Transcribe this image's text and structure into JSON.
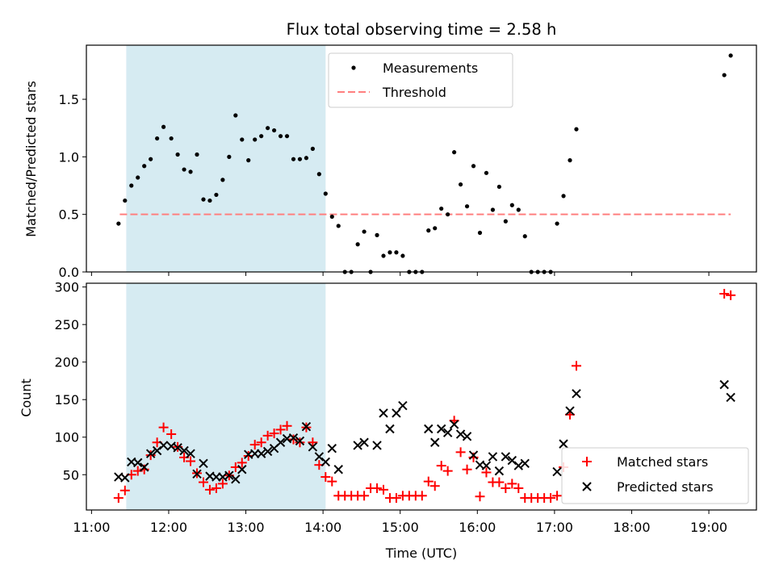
{
  "chart_data": [
    {
      "type": "scatter",
      "title": "Flux total observing time = 2.58 h",
      "xlabel": "",
      "ylabel": "Matched/Predicted stars",
      "ylim": [
        0,
        1.97
      ],
      "yticks": [
        "0.0",
        "0.5",
        "1.0",
        "1.5"
      ],
      "shaded_interval": [
        "11:27",
        "14:02"
      ],
      "threshold": 0.5,
      "threshold_range": [
        "11:22",
        "19:17"
      ],
      "legend": {
        "position": "top-center",
        "entries": [
          "Measurements",
          "Threshold"
        ]
      },
      "series": [
        {
          "name": "Measurements",
          "points": [
            [
              "11:21",
              0.42
            ],
            [
              "11:26",
              0.62
            ],
            [
              "11:31",
              0.75
            ],
            [
              "11:36",
              0.82
            ],
            [
              "11:41",
              0.92
            ],
            [
              "11:46",
              0.98
            ],
            [
              "11:51",
              1.16
            ],
            [
              "11:56",
              1.26
            ],
            [
              "12:02",
              1.16
            ],
            [
              "12:07",
              1.02
            ],
            [
              "12:12",
              0.89
            ],
            [
              "12:17",
              0.87
            ],
            [
              "12:22",
              1.02
            ],
            [
              "12:27",
              0.63
            ],
            [
              "12:32",
              0.62
            ],
            [
              "12:37",
              0.67
            ],
            [
              "12:42",
              0.8
            ],
            [
              "12:47",
              1.0
            ],
            [
              "12:52",
              1.36
            ],
            [
              "12:57",
              1.15
            ],
            [
              "13:02",
              0.97
            ],
            [
              "13:07",
              1.15
            ],
            [
              "13:12",
              1.18
            ],
            [
              "13:17",
              1.25
            ],
            [
              "13:22",
              1.23
            ],
            [
              "13:27",
              1.18
            ],
            [
              "13:32",
              1.18
            ],
            [
              "13:37",
              0.98
            ],
            [
              "13:42",
              0.98
            ],
            [
              "13:47",
              0.99
            ],
            [
              "13:52",
              1.07
            ],
            [
              "13:57",
              0.85
            ],
            [
              "14:02",
              0.68
            ],
            [
              "14:07",
              0.48
            ],
            [
              "14:12",
              0.4
            ],
            [
              "14:17",
              0.0
            ],
            [
              "14:22",
              0.0
            ],
            [
              "14:27",
              0.24
            ],
            [
              "14:32",
              0.35
            ],
            [
              "14:37",
              0.0
            ],
            [
              "14:42",
              0.32
            ],
            [
              "14:47",
              0.14
            ],
            [
              "14:52",
              0.17
            ],
            [
              "14:57",
              0.17
            ],
            [
              "15:02",
              0.14
            ],
            [
              "15:07",
              0.0
            ],
            [
              "15:12",
              0.0
            ],
            [
              "15:17",
              0.0
            ],
            [
              "15:22",
              0.36
            ],
            [
              "15:27",
              0.38
            ],
            [
              "15:32",
              0.55
            ],
            [
              "15:37",
              0.5
            ],
            [
              "15:42",
              1.04
            ],
            [
              "15:47",
              0.76
            ],
            [
              "15:52",
              0.57
            ],
            [
              "15:57",
              0.92
            ],
            [
              "16:02",
              0.34
            ],
            [
              "16:07",
              0.86
            ],
            [
              "16:12",
              0.54
            ],
            [
              "16:17",
              0.74
            ],
            [
              "16:22",
              0.44
            ],
            [
              "16:27",
              0.58
            ],
            [
              "16:32",
              0.54
            ],
            [
              "16:37",
              0.31
            ],
            [
              "16:42",
              0.0
            ],
            [
              "16:47",
              0.0
            ],
            [
              "16:52",
              0.0
            ],
            [
              "16:57",
              0.0
            ],
            [
              "17:02",
              0.42
            ],
            [
              "17:07",
              0.66
            ],
            [
              "17:12",
              0.97
            ],
            [
              "17:17",
              1.24
            ],
            [
              "19:12",
              1.71
            ],
            [
              "19:17",
              1.88
            ]
          ]
        }
      ]
    },
    {
      "type": "scatter",
      "title": "",
      "xlabel": "Time (UTC)",
      "ylabel": "Count",
      "ylim": [
        3,
        305
      ],
      "yticks": [
        "50",
        "100",
        "150",
        "200",
        "250",
        "300"
      ],
      "xticks": [
        "11:00",
        "12:00",
        "13:00",
        "14:00",
        "15:00",
        "16:00",
        "17:00",
        "18:00",
        "19:00"
      ],
      "xlim": [
        "10:56",
        "19:37"
      ],
      "shaded_interval": [
        "11:27",
        "14:02"
      ],
      "legend": {
        "position": "lower-right",
        "entries": [
          "Matched stars",
          "Predicted stars"
        ]
      },
      "series": [
        {
          "name": "Matched stars",
          "color": "#ff0000",
          "marker": "plus",
          "points": [
            [
              "11:21",
              19
            ],
            [
              "11:26",
              29
            ],
            [
              "11:31",
              50
            ],
            [
              "11:36",
              55
            ],
            [
              "11:41",
              57
            ],
            [
              "11:46",
              76
            ],
            [
              "11:51",
              93
            ],
            [
              "11:56",
              113
            ],
            [
              "12:02",
              104
            ],
            [
              "12:07",
              87
            ],
            [
              "12:12",
              73
            ],
            [
              "12:17",
              68
            ],
            [
              "12:22",
              52
            ],
            [
              "12:27",
              40
            ],
            [
              "12:32",
              30
            ],
            [
              "12:37",
              32
            ],
            [
              "12:42",
              38
            ],
            [
              "12:47",
              49
            ],
            [
              "12:52",
              60
            ],
            [
              "12:57",
              66
            ],
            [
              "13:02",
              75
            ],
            [
              "13:07",
              90
            ],
            [
              "13:12",
              93
            ],
            [
              "13:17",
              102
            ],
            [
              "13:22",
              105
            ],
            [
              "13:27",
              110
            ],
            [
              "13:32",
              115
            ],
            [
              "13:37",
              97
            ],
            [
              "13:42",
              93
            ],
            [
              "13:47",
              113
            ],
            [
              "13:52",
              93
            ],
            [
              "13:57",
              63
            ],
            [
              "14:02",
              47
            ],
            [
              "14:07",
              41
            ],
            [
              "14:12",
              22
            ],
            [
              "14:17",
              22
            ],
            [
              "14:22",
              22
            ],
            [
              "14:27",
              22
            ],
            [
              "14:32",
              22
            ],
            [
              "14:37",
              32
            ],
            [
              "14:42",
              32
            ],
            [
              "14:47",
              30
            ],
            [
              "14:52",
              19
            ],
            [
              "14:57",
              19
            ],
            [
              "15:02",
              22
            ],
            [
              "15:07",
              22
            ],
            [
              "15:12",
              22
            ],
            [
              "15:17",
              22
            ],
            [
              "15:22",
              41
            ],
            [
              "15:27",
              35
            ],
            [
              "15:32",
              62
            ],
            [
              "15:37",
              55
            ],
            [
              "15:42",
              122
            ],
            [
              "15:47",
              80
            ],
            [
              "15:52",
              57
            ],
            [
              "15:57",
              73
            ],
            [
              "16:02",
              21
            ],
            [
              "16:07",
              53
            ],
            [
              "16:12",
              40
            ],
            [
              "16:17",
              40
            ],
            [
              "16:22",
              32
            ],
            [
              "16:27",
              38
            ],
            [
              "16:32",
              32
            ],
            [
              "16:37",
              19
            ],
            [
              "16:42",
              19
            ],
            [
              "16:47",
              19
            ],
            [
              "16:52",
              19
            ],
            [
              "16:57",
              19
            ],
            [
              "17:02",
              22
            ],
            [
              "17:07",
              60
            ],
            [
              "17:12",
              130
            ],
            [
              "17:17",
              195
            ],
            [
              "19:12",
              291
            ],
            [
              "19:17",
              289
            ]
          ]
        },
        {
          "name": "Predicted stars",
          "color": "#000000",
          "marker": "x",
          "points": [
            [
              "11:21",
              47
            ],
            [
              "11:26",
              46
            ],
            [
              "11:31",
              67
            ],
            [
              "11:36",
              66
            ],
            [
              "11:41",
              60
            ],
            [
              "11:46",
              78
            ],
            [
              "11:51",
              82
            ],
            [
              "11:56",
              89
            ],
            [
              "12:02",
              88
            ],
            [
              "12:07",
              86
            ],
            [
              "12:12",
              82
            ],
            [
              "12:17",
              78
            ],
            [
              "12:22",
              51
            ],
            [
              "12:27",
              65
            ],
            [
              "12:32",
              48
            ],
            [
              "12:37",
              47
            ],
            [
              "12:42",
              47
            ],
            [
              "12:47",
              49
            ],
            [
              "12:52",
              44
            ],
            [
              "12:57",
              57
            ],
            [
              "13:02",
              77
            ],
            [
              "13:07",
              78
            ],
            [
              "13:12",
              78
            ],
            [
              "13:17",
              81
            ],
            [
              "13:22",
              85
            ],
            [
              "13:27",
              93
            ],
            [
              "13:32",
              98
            ],
            [
              "13:37",
              99
            ],
            [
              "13:42",
              95
            ],
            [
              "13:47",
              114
            ],
            [
              "13:52",
              87
            ],
            [
              "13:57",
              74
            ],
            [
              "14:02",
              67
            ],
            [
              "14:07",
              85
            ],
            [
              "14:12",
              57
            ],
            [
              "14:27",
              89
            ],
            [
              "14:32",
              93
            ],
            [
              "14:42",
              89
            ],
            [
              "14:47",
              132
            ],
            [
              "14:52",
              111
            ],
            [
              "14:57",
              132
            ],
            [
              "15:02",
              142
            ],
            [
              "15:22",
              111
            ],
            [
              "15:27",
              93
            ],
            [
              "15:32",
              111
            ],
            [
              "15:37",
              106
            ],
            [
              "15:42",
              117
            ],
            [
              "15:47",
              104
            ],
            [
              "15:52",
              101
            ],
            [
              "15:57",
              76
            ],
            [
              "16:02",
              63
            ],
            [
              "16:07",
              62
            ],
            [
              "16:12",
              74
            ],
            [
              "16:17",
              55
            ],
            [
              "16:22",
              74
            ],
            [
              "16:27",
              69
            ],
            [
              "16:32",
              62
            ],
            [
              "16:37",
              65
            ],
            [
              "17:02",
              54
            ],
            [
              "17:07",
              91
            ],
            [
              "17:12",
              135
            ],
            [
              "17:17",
              158
            ],
            [
              "19:12",
              170
            ],
            [
              "19:17",
              153
            ]
          ]
        }
      ]
    }
  ]
}
